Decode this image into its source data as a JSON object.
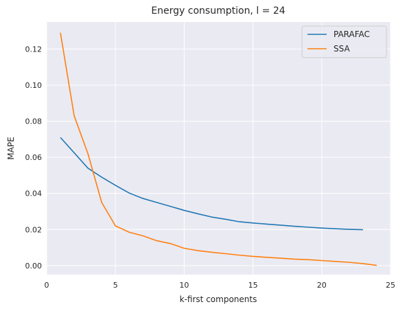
{
  "chart_data": {
    "type": "line",
    "title": "Energy consumption, l = 24",
    "xlabel": "k-first components",
    "ylabel": "MAPE",
    "xlim": [
      0,
      25
    ],
    "ylim": [
      -0.005,
      0.135
    ],
    "xticks": [
      0,
      5,
      10,
      15,
      20,
      25
    ],
    "xtick_labels": [
      "0",
      "5",
      "10",
      "15",
      "20",
      "25"
    ],
    "yticks": [
      0.0,
      0.02,
      0.04,
      0.06,
      0.08,
      0.1,
      0.12
    ],
    "ytick_labels": [
      "0.00",
      "0.02",
      "0.04",
      "0.06",
      "0.08",
      "0.10",
      "0.12"
    ],
    "grid": true,
    "legend_position": "top-right",
    "series": [
      {
        "name": "PARAFAC",
        "color": "#1f77b4",
        "x": [
          1,
          2,
          3,
          4,
          5,
          6,
          7,
          8,
          9,
          10,
          11,
          12,
          13,
          14,
          15,
          16,
          17,
          18,
          19,
          20,
          21,
          22,
          23
        ],
        "y": [
          0.071,
          0.0625,
          0.054,
          0.049,
          0.0445,
          0.0402,
          0.0372,
          0.035,
          0.0328,
          0.0306,
          0.0287,
          0.0269,
          0.0257,
          0.0243,
          0.0236,
          0.023,
          0.0224,
          0.0218,
          0.0213,
          0.0208,
          0.0204,
          0.0201,
          0.0199
        ]
      },
      {
        "name": "SSA",
        "color": "#ff7f0e",
        "x": [
          1,
          2,
          3,
          4,
          5,
          6,
          7,
          8,
          9,
          10,
          11,
          12,
          13,
          14,
          15,
          16,
          17,
          18,
          19,
          20,
          21,
          22,
          23,
          24
        ],
        "y": [
          0.129,
          0.083,
          0.062,
          0.035,
          0.022,
          0.0185,
          0.0165,
          0.0138,
          0.0122,
          0.0096,
          0.0083,
          0.0074,
          0.0066,
          0.0058,
          0.0051,
          0.0046,
          0.0041,
          0.0036,
          0.0033,
          0.0028,
          0.0023,
          0.0018,
          0.0011,
          0.0001
        ]
      }
    ]
  }
}
